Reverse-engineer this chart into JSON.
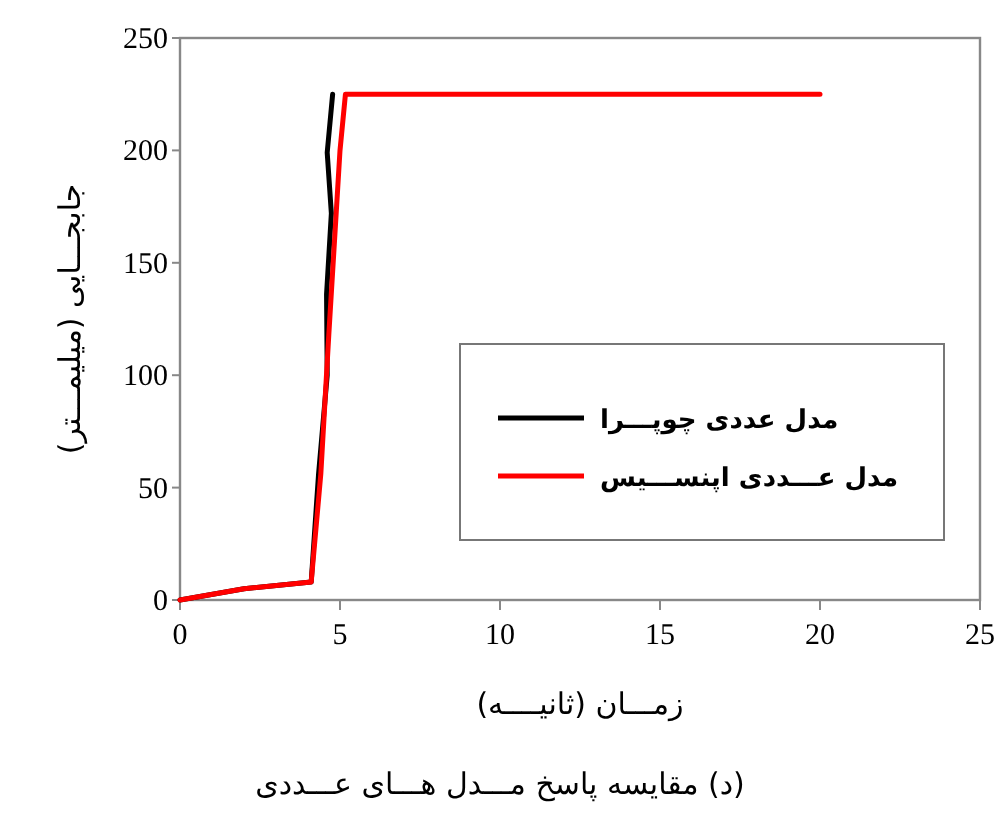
{
  "chart_data": {
    "type": "line",
    "title": "(د) مقایسه پاسخ مـــدل هـــای عـــددی",
    "xlabel": "زمـــان (ثانیــــه)",
    "ylabel": "جابجـــایی (میلیمـــتر)",
    "xlim": [
      0,
      25
    ],
    "xticks": [
      0,
      5,
      10,
      15,
      20,
      25
    ],
    "ylim": [
      0,
      250
    ],
    "yticks": [
      0,
      50,
      100,
      150,
      200,
      250
    ],
    "legend": "right",
    "grid": false,
    "marker": "none",
    "line_style": "solid",
    "series": [
      {
        "name": "مدل عددی چوپـــرا",
        "color": "#000000",
        "x": [
          0,
          2,
          4.1,
          4.33,
          4.6,
          4.58,
          4.73,
          4.6,
          4.77
        ],
        "values": [
          0,
          5,
          8,
          56,
          100,
          136,
          172,
          199,
          225
        ]
      },
      {
        "name": "مدل عـــددی اپنســـیس",
        "color": "#ff0000",
        "x": [
          0,
          2,
          4.1,
          4.4,
          4.65,
          5.0,
          5.17,
          20
        ],
        "values": [
          0,
          5,
          8,
          56,
          118,
          200,
          225,
          225
        ]
      }
    ]
  }
}
